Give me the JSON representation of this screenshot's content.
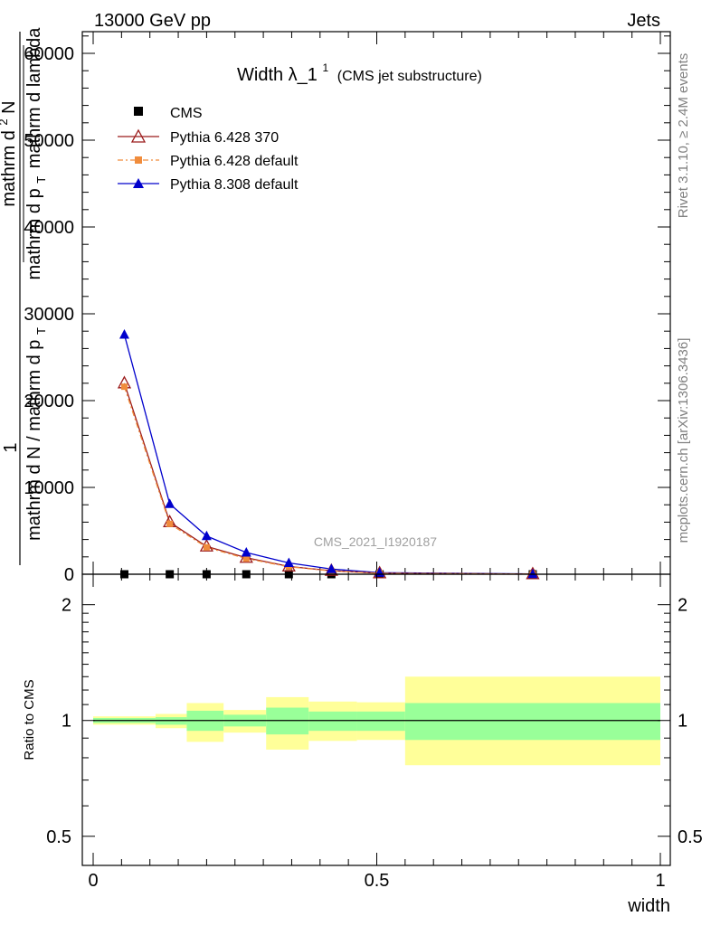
{
  "header": {
    "left": "13000 GeV pp",
    "right": "Jets"
  },
  "side_labels": {
    "rivet": "Rivet 3.1.10, ≥ 2.4M events",
    "mcplots": "mcplots.cern.ch [arXiv:1306.3436]"
  },
  "watermark": "CMS_2021_I1920187",
  "colors": {
    "pythia6_370": "#9b1b1b",
    "pythia6_default": "#f08c3c",
    "pythia8_default": "#0000cc",
    "band_inner": "#99ff99",
    "band_outer": "#ffff99"
  },
  "chart_data": [
    {
      "type": "line",
      "title_main": "Width λ_1",
      "title_sup": "1",
      "title_sub": "(CMS jet substructure)",
      "ylabel_lines": [
        "mathrm d²N",
        "mathrm d p_T mathrm d lambda",
        "1",
        "mathrm d N / mathrm d p_T"
      ],
      "ylabel_upper_a": "mathrm d",
      "ylabel_upper_b": "N",
      "ylabel_upper_sup": "2",
      "ylabel_upper_c": "mathrm d p",
      "ylabel_upper_sub": "T",
      "ylabel_upper_d": "mathrm d lambda",
      "ylabel_one": "1",
      "ylabel_lower_a": "mathrm d N / mathrm d p",
      "ylabel_lower_sub": "T",
      "xlim": [
        0,
        1
      ],
      "ylim": [
        0,
        62500
      ],
      "yticks": [
        0,
        10000,
        20000,
        30000,
        40000,
        50000,
        60000
      ],
      "ytick_labels": [
        "0",
        "10000",
        "20000",
        "30000",
        "40000",
        "50000",
        "60000"
      ],
      "series": [
        {
          "name": "CMS",
          "x": [
            0.055,
            0.135,
            0.2,
            0.27,
            0.345,
            0.42,
            0.505,
            0.775
          ],
          "y": [
            0,
            0,
            0,
            0,
            0,
            0,
            0,
            0
          ]
        },
        {
          "name": "Pythia 6.428 370",
          "x": [
            0.055,
            0.135,
            0.2,
            0.27,
            0.345,
            0.42,
            0.505,
            0.775
          ],
          "y": [
            22000,
            6000,
            3200,
            1900,
            900,
            400,
            120,
            20
          ]
        },
        {
          "name": "Pythia 6.428 default",
          "x": [
            0.055,
            0.135,
            0.2,
            0.27,
            0.345,
            0.42,
            0.505,
            0.775
          ],
          "y": [
            21600,
            5800,
            3100,
            1800,
            860,
            380,
            110,
            20
          ]
        },
        {
          "name": "Pythia 8.308 default",
          "x": [
            0.055,
            0.135,
            0.2,
            0.27,
            0.345,
            0.42,
            0.505,
            0.775
          ],
          "y": [
            27600,
            8100,
            4400,
            2500,
            1300,
            600,
            180,
            30
          ]
        }
      ]
    },
    {
      "type": "area",
      "ylabel": "Ratio to CMS",
      "xlabel": "width",
      "xlim": [
        0,
        1
      ],
      "ylim": [
        0.42,
        2.4
      ],
      "log_y": true,
      "yticks": [
        0.5,
        1,
        2
      ],
      "ytick_labels": [
        "0.5",
        "1",
        "2"
      ],
      "xticks": [
        0,
        0.5,
        1
      ],
      "xtick_labels": [
        "0",
        "0.5",
        "1"
      ],
      "bins": [
        {
          "x0": 0.0,
          "x1": 0.11,
          "inner_lo": 0.985,
          "inner_hi": 1.015,
          "outer_lo": 0.975,
          "outer_hi": 1.025
        },
        {
          "x0": 0.11,
          "x1": 0.165,
          "inner_lo": 0.975,
          "inner_hi": 1.02,
          "outer_lo": 0.955,
          "outer_hi": 1.04
        },
        {
          "x0": 0.165,
          "x1": 0.23,
          "inner_lo": 0.94,
          "inner_hi": 1.06,
          "outer_lo": 0.88,
          "outer_hi": 1.11
        },
        {
          "x0": 0.23,
          "x1": 0.305,
          "inner_lo": 0.965,
          "inner_hi": 1.035,
          "outer_lo": 0.93,
          "outer_hi": 1.065
        },
        {
          "x0": 0.305,
          "x1": 0.38,
          "inner_lo": 0.92,
          "inner_hi": 1.08,
          "outer_lo": 0.84,
          "outer_hi": 1.15
        },
        {
          "x0": 0.38,
          "x1": 0.465,
          "inner_lo": 0.94,
          "inner_hi": 1.055,
          "outer_lo": 0.885,
          "outer_hi": 1.12
        },
        {
          "x0": 0.465,
          "x1": 0.55,
          "inner_lo": 0.94,
          "inner_hi": 1.055,
          "outer_lo": 0.89,
          "outer_hi": 1.115
        },
        {
          "x0": 0.55,
          "x1": 1.0,
          "inner_lo": 0.89,
          "inner_hi": 1.11,
          "outer_lo": 0.765,
          "outer_hi": 1.3
        }
      ]
    }
  ]
}
